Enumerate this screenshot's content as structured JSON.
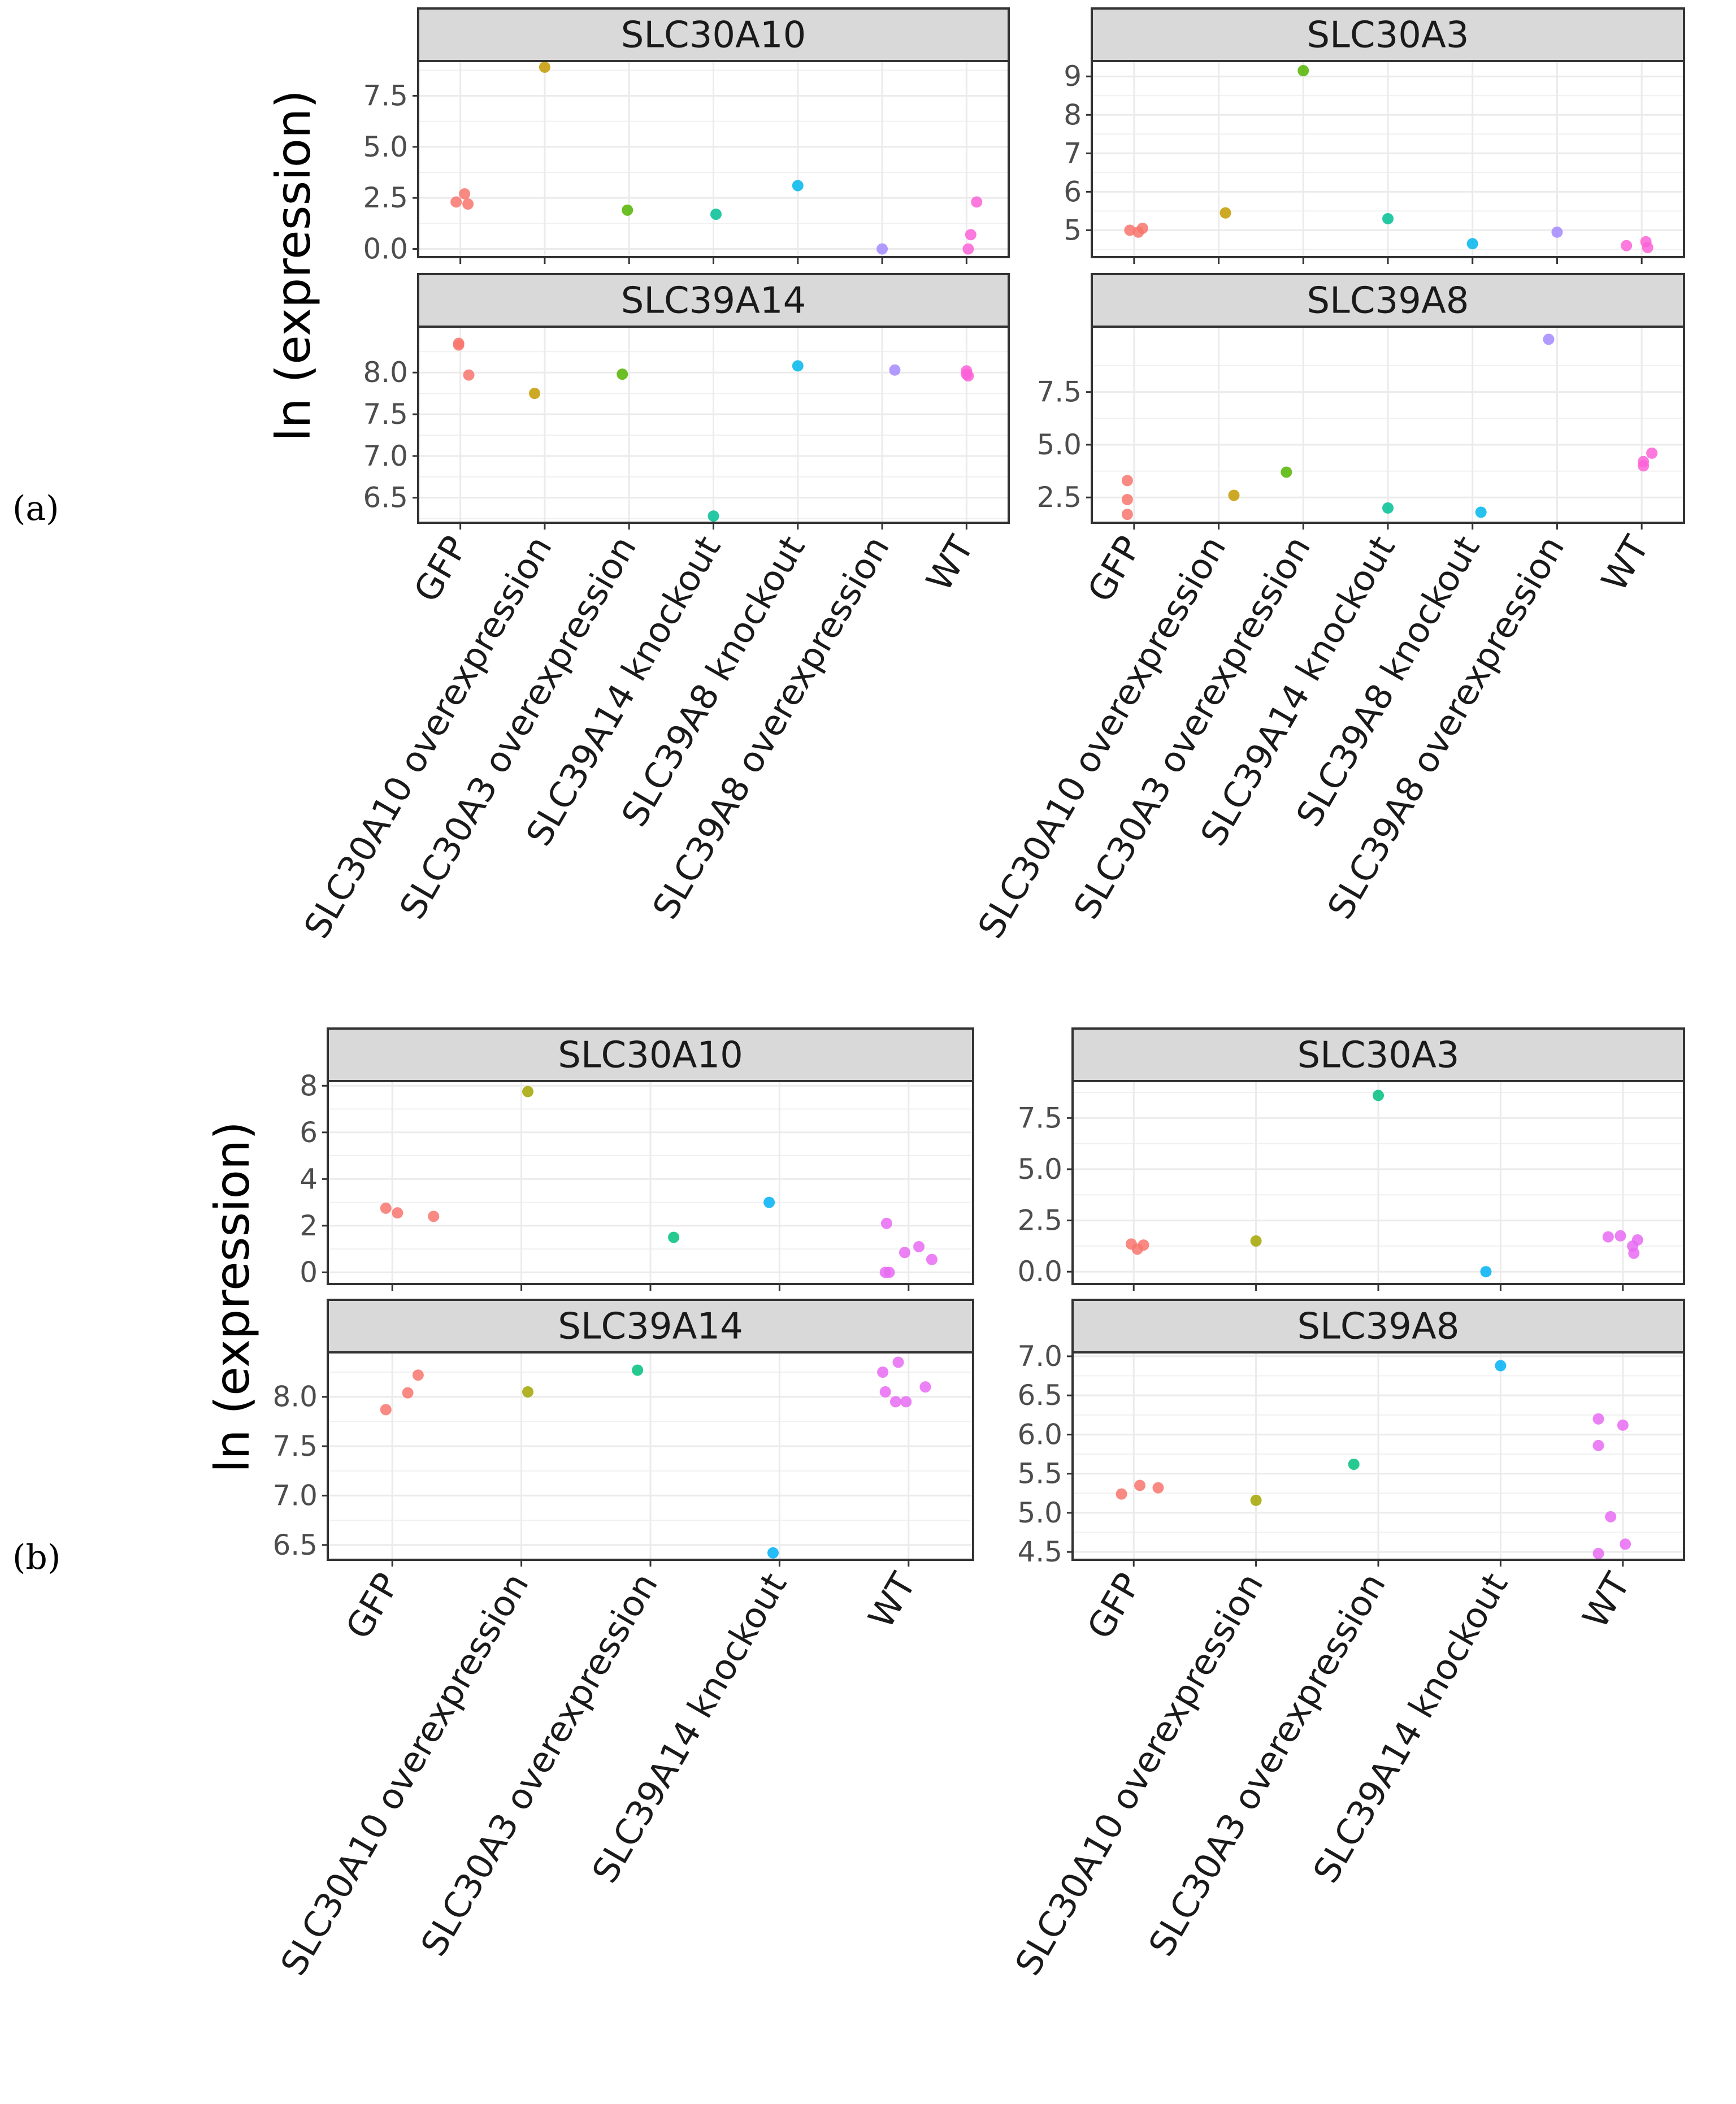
{
  "figure": {
    "panel_labels": [
      "(a)",
      "(b)"
    ],
    "ylabel": "ln (expression)"
  },
  "colors": {
    "GFP": "#F8766D",
    "SLC30A10 overexpression": "#C49A00",
    "SLC30A3 overexpression": "#53B400",
    "SLC39A14 knockout": "#00C094",
    "SLC39A8 knockout": "#00B6EB",
    "SLC39A8 overexpression": "#A58AFF",
    "WT": "#FB61D7"
  },
  "colors_b": {
    "GFP": "#F8766D",
    "SLC30A10 overexpression": "#A3A500",
    "SLC30A3 overexpression": "#00BF7D",
    "SLC39A14 knockout": "#00B0F6",
    "WT": "#E76BF3"
  },
  "chart_data": [
    {
      "group": "(a)",
      "type": "scatter",
      "title": "SLC30A10",
      "ylabel": "ln (expression)",
      "categories": [
        "GFP",
        "SLC30A10 overexpression",
        "SLC30A3 overexpression",
        "SLC39A14 knockout",
        "SLC39A8 knockout",
        "SLC39A8 overexpression",
        "WT"
      ],
      "ylim": [
        -0.4,
        9.2
      ],
      "yticks": [
        0,
        2.5,
        5,
        7.5
      ],
      "yticklabels": [
        "0.0",
        "2.5",
        "5.0",
        "7.5"
      ],
      "points": [
        {
          "category": "GFP",
          "offset": -0.05,
          "y": 2.3
        },
        {
          "category": "GFP",
          "offset": 0.05,
          "y": 2.7
        },
        {
          "category": "GFP",
          "offset": 0.09,
          "y": 2.2
        },
        {
          "category": "SLC30A10 overexpression",
          "offset": 0.0,
          "y": 8.9
        },
        {
          "category": "SLC30A3 overexpression",
          "offset": -0.02,
          "y": 1.9
        },
        {
          "category": "SLC39A14 knockout",
          "offset": 0.03,
          "y": 1.7
        },
        {
          "category": "SLC39A8 knockout",
          "offset": 0.0,
          "y": 3.1
        },
        {
          "category": "SLC39A8 overexpression",
          "offset": 0.0,
          "y": 0.0
        },
        {
          "category": "WT",
          "offset": 0.12,
          "y": 2.3
        },
        {
          "category": "WT",
          "offset": 0.05,
          "y": 0.7
        },
        {
          "category": "WT",
          "offset": 0.02,
          "y": 0.0
        }
      ]
    },
    {
      "group": "(a)",
      "type": "scatter",
      "title": "SLC30A3",
      "categories": [
        "GFP",
        "SLC30A10 overexpression",
        "SLC30A3 overexpression",
        "SLC39A14 knockout",
        "SLC39A8 knockout",
        "SLC39A8 overexpression",
        "WT"
      ],
      "ylim": [
        4.3,
        9.4
      ],
      "yticks": [
        5,
        6,
        7,
        8,
        9
      ],
      "yticklabels": [
        "5",
        "6",
        "7",
        "8",
        "9"
      ],
      "points": [
        {
          "category": "GFP",
          "offset": -0.05,
          "y": 5.0
        },
        {
          "category": "GFP",
          "offset": 0.05,
          "y": 4.95
        },
        {
          "category": "GFP",
          "offset": 0.1,
          "y": 5.05
        },
        {
          "category": "SLC30A10 overexpression",
          "offset": 0.08,
          "y": 5.45
        },
        {
          "category": "SLC30A3 overexpression",
          "offset": 0.0,
          "y": 9.15
        },
        {
          "category": "SLC39A14 knockout",
          "offset": 0.0,
          "y": 5.3
        },
        {
          "category": "SLC39A8 knockout",
          "offset": 0.0,
          "y": 4.65
        },
        {
          "category": "SLC39A8 overexpression",
          "offset": 0.0,
          "y": 4.95
        },
        {
          "category": "WT",
          "offset": -0.18,
          "y": 4.6
        },
        {
          "category": "WT",
          "offset": 0.05,
          "y": 4.7
        },
        {
          "category": "WT",
          "offset": 0.07,
          "y": 4.55
        }
      ]
    },
    {
      "group": "(a)",
      "type": "scatter",
      "title": "SLC39A14",
      "categories": [
        "GFP",
        "SLC30A10 overexpression",
        "SLC30A3 overexpression",
        "SLC39A14 knockout",
        "SLC39A8 knockout",
        "SLC39A8 overexpression",
        "WT"
      ],
      "ylim": [
        6.2,
        8.55
      ],
      "yticks": [
        6.5,
        7,
        7.5,
        8
      ],
      "yticklabels": [
        "6.5",
        "7.0",
        "7.5",
        "8.0"
      ],
      "points": [
        {
          "category": "GFP",
          "offset": -0.02,
          "y": 8.35
        },
        {
          "category": "GFP",
          "offset": -0.02,
          "y": 8.33
        },
        {
          "category": "GFP",
          "offset": 0.1,
          "y": 7.97
        },
        {
          "category": "SLC30A10 overexpression",
          "offset": -0.12,
          "y": 7.75
        },
        {
          "category": "SLC30A3 overexpression",
          "offset": -0.08,
          "y": 7.98
        },
        {
          "category": "SLC39A14 knockout",
          "offset": 0.0,
          "y": 6.28
        },
        {
          "category": "SLC39A8 knockout",
          "offset": 0.0,
          "y": 8.08
        },
        {
          "category": "SLC39A8 overexpression",
          "offset": 0.15,
          "y": 8.03
        },
        {
          "category": "WT",
          "offset": 0.0,
          "y": 8.02
        },
        {
          "category": "WT",
          "offset": 0.0,
          "y": 7.98
        },
        {
          "category": "WT",
          "offset": 0.02,
          "y": 7.96
        }
      ]
    },
    {
      "group": "(a)",
      "type": "scatter",
      "title": "SLC39A8",
      "categories": [
        "GFP",
        "SLC30A10 overexpression",
        "SLC30A3 overexpression",
        "SLC39A14 knockout",
        "SLC39A8 knockout",
        "SLC39A8 overexpression",
        "WT"
      ],
      "ylim": [
        1.3,
        10.6
      ],
      "yticks": [
        2.5,
        5,
        7.5
      ],
      "yticklabels": [
        "2.5",
        "5.0",
        "7.5"
      ],
      "points": [
        {
          "category": "GFP",
          "offset": -0.08,
          "y": 3.3
        },
        {
          "category": "GFP",
          "offset": -0.08,
          "y": 2.4
        },
        {
          "category": "GFP",
          "offset": -0.08,
          "y": 1.7
        },
        {
          "category": "SLC30A10 overexpression",
          "offset": 0.18,
          "y": 2.6
        },
        {
          "category": "SLC30A3 overexpression",
          "offset": -0.2,
          "y": 3.7
        },
        {
          "category": "SLC39A14 knockout",
          "offset": 0.0,
          "y": 2.0
        },
        {
          "category": "SLC39A8 knockout",
          "offset": 0.1,
          "y": 1.8
        },
        {
          "category": "SLC39A8 overexpression",
          "offset": -0.1,
          "y": 10.0
        },
        {
          "category": "WT",
          "offset": 0.12,
          "y": 4.6
        },
        {
          "category": "WT",
          "offset": 0.02,
          "y": 4.2
        },
        {
          "category": "WT",
          "offset": 0.02,
          "y": 4.0
        }
      ]
    },
    {
      "group": "(b)",
      "type": "scatter",
      "title": "SLC30A10",
      "ylabel": "ln (expression)",
      "categories": [
        "GFP",
        "SLC30A10 overexpression",
        "SLC30A3 overexpression",
        "SLC39A14 knockout",
        "WT"
      ],
      "ylim": [
        -0.5,
        8.2
      ],
      "yticks": [
        0,
        2,
        4,
        6,
        8
      ],
      "yticklabels": [
        "0",
        "2",
        "4",
        "6",
        "8"
      ],
      "points": [
        {
          "category": "GFP",
          "offset": -0.05,
          "y": 2.75
        },
        {
          "category": "GFP",
          "offset": 0.04,
          "y": 2.55
        },
        {
          "category": "GFP",
          "offset": 0.32,
          "y": 2.4
        },
        {
          "category": "SLC30A10 overexpression",
          "offset": 0.05,
          "y": 7.75
        },
        {
          "category": "SLC30A3 overexpression",
          "offset": 0.18,
          "y": 1.5
        },
        {
          "category": "SLC39A14 knockout",
          "offset": -0.08,
          "y": 3.0
        },
        {
          "category": "WT",
          "offset": -0.17,
          "y": 2.1
        },
        {
          "category": "WT",
          "offset": -0.03,
          "y": 0.85
        },
        {
          "category": "WT",
          "offset": 0.08,
          "y": 1.1
        },
        {
          "category": "WT",
          "offset": 0.18,
          "y": 0.55
        },
        {
          "category": "WT",
          "offset": -0.18,
          "y": 0.0
        },
        {
          "category": "WT",
          "offset": -0.15,
          "y": 0.0
        }
      ]
    },
    {
      "group": "(b)",
      "type": "scatter",
      "title": "SLC30A3",
      "categories": [
        "GFP",
        "SLC30A10 overexpression",
        "SLC30A3 overexpression",
        "SLC39A14 knockout",
        "WT"
      ],
      "ylim": [
        -0.6,
        9.3
      ],
      "yticks": [
        0,
        2.5,
        5,
        7.5
      ],
      "yticklabels": [
        "0.0",
        "2.5",
        "5.0",
        "7.5"
      ],
      "points": [
        {
          "category": "GFP",
          "offset": -0.02,
          "y": 1.35
        },
        {
          "category": "GFP",
          "offset": 0.03,
          "y": 1.1
        },
        {
          "category": "GFP",
          "offset": 0.08,
          "y": 1.3
        },
        {
          "category": "SLC30A10 overexpression",
          "offset": 0.0,
          "y": 1.5
        },
        {
          "category": "SLC30A3 overexpression",
          "offset": 0.0,
          "y": 8.6
        },
        {
          "category": "SLC39A14 knockout",
          "offset": -0.12,
          "y": 0.0
        },
        {
          "category": "WT",
          "offset": -0.12,
          "y": 1.7
        },
        {
          "category": "WT",
          "offset": -0.02,
          "y": 1.75
        },
        {
          "category": "WT",
          "offset": 0.08,
          "y": 1.25
        },
        {
          "category": "WT",
          "offset": 0.12,
          "y": 1.55
        },
        {
          "category": "WT",
          "offset": 0.09,
          "y": 0.9
        }
      ]
    },
    {
      "group": "(b)",
      "type": "scatter",
      "title": "SLC39A14",
      "categories": [
        "GFP",
        "SLC30A10 overexpression",
        "SLC30A3 overexpression",
        "SLC39A14 knockout",
        "WT"
      ],
      "ylim": [
        6.35,
        8.45
      ],
      "yticks": [
        6.5,
        7,
        7.5,
        8
      ],
      "yticklabels": [
        "6.5",
        "7.0",
        "7.5",
        "8.0"
      ],
      "points": [
        {
          "category": "GFP",
          "offset": -0.05,
          "y": 7.87
        },
        {
          "category": "GFP",
          "offset": 0.12,
          "y": 8.04
        },
        {
          "category": "GFP",
          "offset": 0.2,
          "y": 8.22
        },
        {
          "category": "SLC30A10 overexpression",
          "offset": 0.05,
          "y": 8.05
        },
        {
          "category": "SLC30A3 overexpression",
          "offset": -0.1,
          "y": 8.27
        },
        {
          "category": "SLC39A14 knockout",
          "offset": -0.05,
          "y": 6.42
        },
        {
          "category": "WT",
          "offset": -0.2,
          "y": 8.25
        },
        {
          "category": "WT",
          "offset": -0.08,
          "y": 8.35
        },
        {
          "category": "WT",
          "offset": -0.18,
          "y": 8.05
        },
        {
          "category": "WT",
          "offset": -0.1,
          "y": 7.95
        },
        {
          "category": "WT",
          "offset": -0.02,
          "y": 7.95
        },
        {
          "category": "WT",
          "offset": 0.13,
          "y": 8.1
        }
      ]
    },
    {
      "group": "(b)",
      "type": "scatter",
      "title": "SLC39A8",
      "categories": [
        "GFP",
        "SLC30A10 overexpression",
        "SLC30A3 overexpression",
        "SLC39A14 knockout",
        "WT"
      ],
      "ylim": [
        4.4,
        7.05
      ],
      "yticks": [
        4.5,
        5,
        5.5,
        6,
        6.5,
        7
      ],
      "yticklabels": [
        "4.5",
        "5.0",
        "5.5",
        "6.0",
        "6.5",
        "7.0"
      ],
      "points": [
        {
          "category": "GFP",
          "offset": -0.1,
          "y": 5.24
        },
        {
          "category": "GFP",
          "offset": 0.05,
          "y": 5.35
        },
        {
          "category": "GFP",
          "offset": 0.2,
          "y": 5.32
        },
        {
          "category": "SLC30A10 overexpression",
          "offset": 0.0,
          "y": 5.16
        },
        {
          "category": "SLC30A3 overexpression",
          "offset": -0.2,
          "y": 5.62
        },
        {
          "category": "SLC39A14 knockout",
          "offset": 0.0,
          "y": 6.88
        },
        {
          "category": "WT",
          "offset": -0.2,
          "y": 6.2
        },
        {
          "category": "WT",
          "offset": 0.0,
          "y": 6.12
        },
        {
          "category": "WT",
          "offset": -0.2,
          "y": 5.86
        },
        {
          "category": "WT",
          "offset": -0.1,
          "y": 4.95
        },
        {
          "category": "WT",
          "offset": 0.02,
          "y": 4.6
        },
        {
          "category": "WT",
          "offset": -0.2,
          "y": 4.48
        }
      ]
    }
  ]
}
